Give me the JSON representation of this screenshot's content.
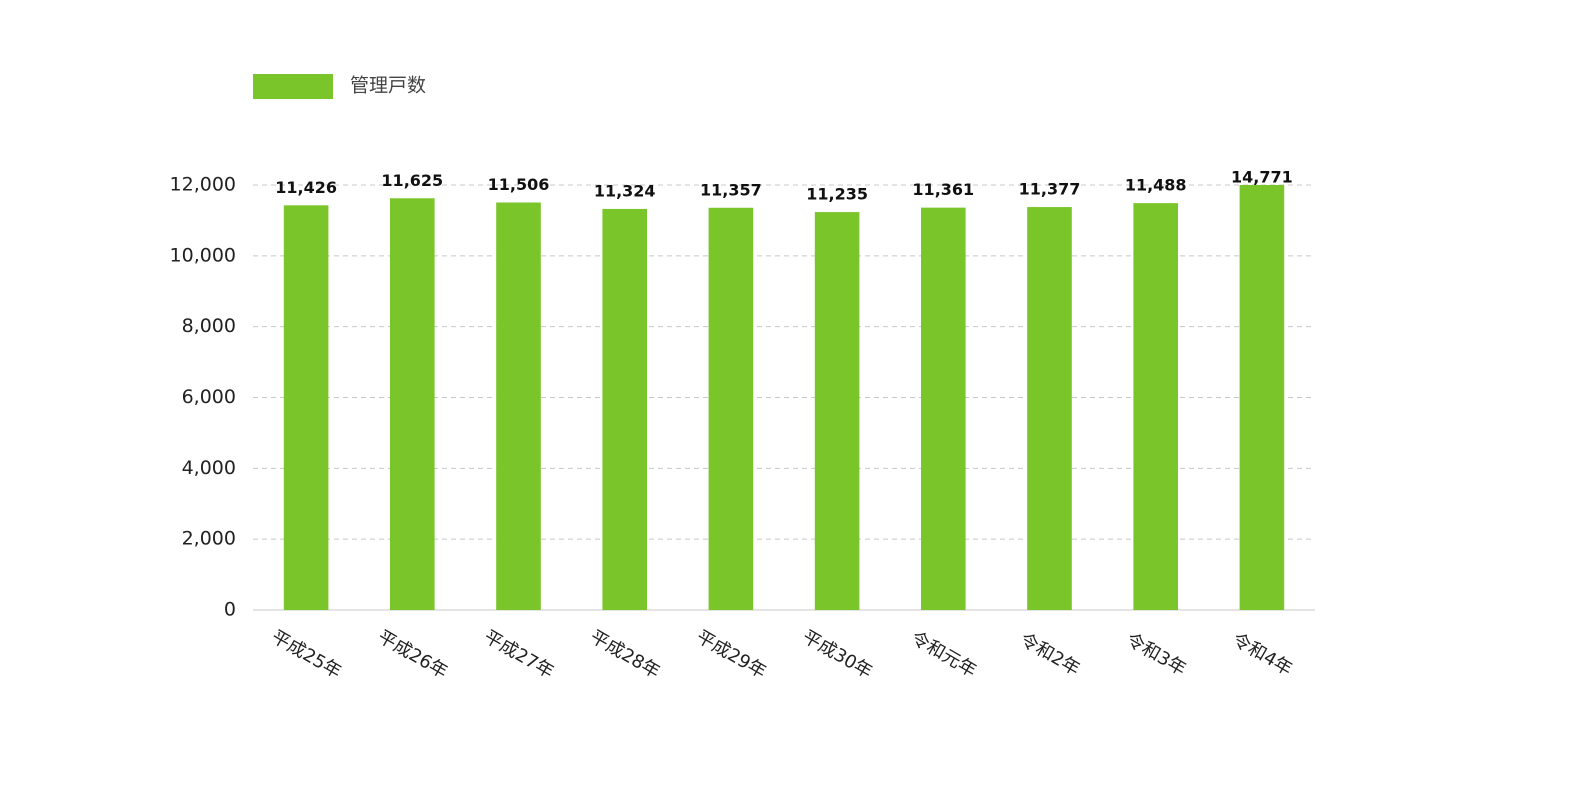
{
  "chart_data": {
    "type": "bar",
    "categories": [
      "平成25年",
      "平成26年",
      "平成27年",
      "平成28年",
      "平成29年",
      "平成30年",
      "令和元年",
      "令和2年",
      "令和3年",
      "令和4年"
    ],
    "series": [
      {
        "name": "管理戸数",
        "color": "#7ac529",
        "values": [
          11426,
          11625,
          11506,
          11324,
          11357,
          11235,
          11361,
          11377,
          11488,
          14771
        ],
        "value_labels": [
          "11,426",
          "11,625",
          "11,506",
          "11,324",
          "11,357",
          "11,235",
          "11,361",
          "11,377",
          "11,488",
          "14,771"
        ]
      }
    ],
    "ylim": [
      0,
      12000
    ],
    "yticks": [
      0,
      {
        "value": 2000,
        "label": "2,000"
      },
      {
        "value": 4000,
        "label": "4,000"
      },
      {
        "value": 6000,
        "label": "6,000"
      },
      {
        "value": 8000,
        "label": "8,000"
      },
      {
        "value": 10000,
        "label": "10,000"
      },
      {
        "value": 12000,
        "label": "12,000"
      }
    ],
    "grid": true,
    "legend": "top-left"
  }
}
